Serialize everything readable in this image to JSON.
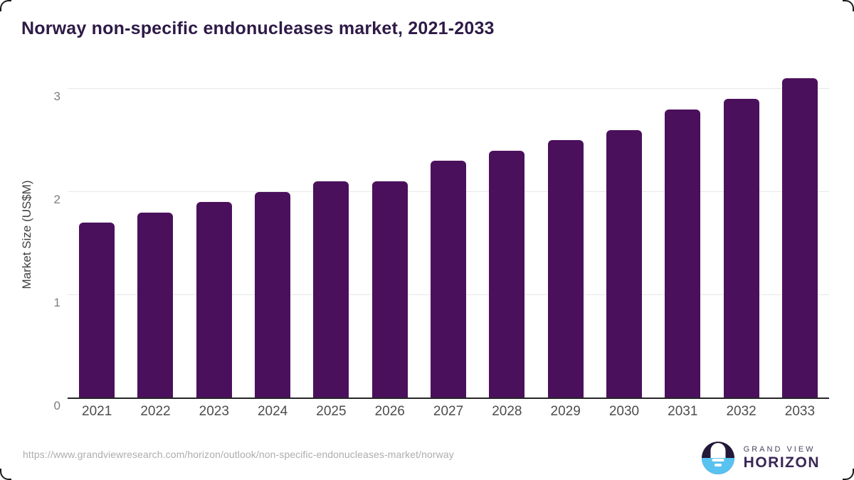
{
  "title": "Norway non-specific endonucleases market, 2021-2033",
  "chart_data": {
    "type": "bar",
    "title": "Norway non-specific endonucleases market, 2021-2033",
    "categories": [
      "2021",
      "2022",
      "2023",
      "2024",
      "2025",
      "2026",
      "2027",
      "2028",
      "2029",
      "2030",
      "2031",
      "2032",
      "2033"
    ],
    "values": [
      1.7,
      1.8,
      1.9,
      2.0,
      2.1,
      2.1,
      2.3,
      2.4,
      2.5,
      2.6,
      2.8,
      2.9,
      3.1
    ],
    "xlabel": "",
    "ylabel": "Market Size (US$M)",
    "ylim": [
      0,
      3.17
    ],
    "yticks": [
      0,
      1,
      2,
      3
    ],
    "grid": "horizontal-only",
    "legend": "none",
    "bar_color": "#4b105c"
  },
  "colors": {
    "title": "#2e1a47",
    "bar": "#4b105c",
    "gridline": "#e7e7e7",
    "axis_line": "#262626",
    "tick_label": "#7d7d7d",
    "x_label": "#4d4d4d",
    "url_text": "#adadad",
    "logo_dark": "#241839",
    "logo_blue": "#58c2f0"
  },
  "footer": {
    "source_url": "https://www.grandviewresearch.com/horizon/outlook/non-specific-endonucleases-market/norway",
    "logo": {
      "line1": "GRAND VIEW",
      "line2": "HORIZON"
    }
  }
}
